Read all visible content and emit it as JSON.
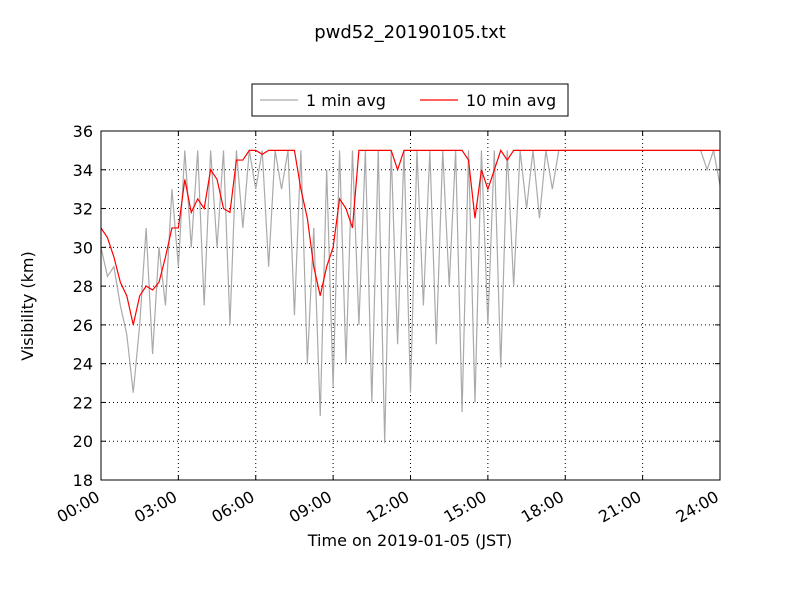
{
  "chart_data": {
    "type": "line",
    "title": "pwd52_20190105.txt",
    "xlabel": "Time on 2019-01-05 (JST)",
    "ylabel": "Visibility (km)",
    "x": [
      0,
      0.25,
      0.5,
      0.75,
      1,
      1.25,
      1.5,
      1.75,
      2,
      2.25,
      2.5,
      2.75,
      3,
      3.25,
      3.5,
      3.75,
      4,
      4.25,
      4.5,
      4.75,
      5,
      5.25,
      5.5,
      5.75,
      6,
      6.25,
      6.5,
      6.75,
      7,
      7.25,
      7.5,
      7.75,
      8,
      8.25,
      8.5,
      8.75,
      9,
      9.25,
      9.5,
      9.75,
      10,
      10.25,
      10.5,
      10.75,
      11,
      11.25,
      11.5,
      11.75,
      12,
      12.25,
      12.5,
      12.75,
      13,
      13.25,
      13.5,
      13.75,
      14,
      14.25,
      14.5,
      14.75,
      15,
      15.25,
      15.5,
      15.75,
      16,
      16.25,
      16.5,
      16.75,
      17,
      17.25,
      17.5,
      17.75,
      18,
      18.25,
      18.5,
      18.75,
      19,
      19.25,
      19.5,
      19.75,
      20,
      20.25,
      20.5,
      20.75,
      21,
      21.25,
      21.5,
      21.75,
      22,
      22.25,
      22.5,
      22.75,
      23,
      23.25,
      23.5,
      23.75,
      24
    ],
    "series": [
      {
        "name": "1 min avg",
        "color": "#aaaaaa",
        "values": [
          30,
          28.5,
          29,
          27,
          25.5,
          22.5,
          26,
          31,
          24.5,
          30,
          27,
          33,
          29,
          35,
          30,
          35,
          27,
          35,
          30,
          35,
          26,
          35,
          31,
          35,
          33,
          35,
          29,
          35,
          33,
          35,
          26.5,
          35,
          24,
          31,
          21.3,
          34,
          22.8,
          35,
          24,
          35,
          26,
          35,
          22,
          35,
          19.9,
          35,
          25,
          35,
          22.5,
          35,
          27,
          35,
          25,
          35,
          28,
          35,
          21.5,
          35,
          22,
          35,
          26,
          35,
          23.8,
          35,
          28,
          35,
          32,
          35,
          31.5,
          35,
          33,
          35,
          35,
          35,
          35,
          35,
          35,
          35,
          35,
          35,
          35,
          35,
          35,
          35,
          35,
          35,
          35,
          35,
          35,
          35,
          35,
          35,
          35,
          35,
          34,
          35,
          33.2
        ]
      },
      {
        "name": "10 min avg",
        "color": "#ff0000",
        "values": [
          31,
          30.5,
          29.5,
          28.2,
          27.5,
          26,
          27.5,
          28,
          27.8,
          28.2,
          29.5,
          31,
          31,
          33.5,
          31.8,
          32.5,
          32,
          34,
          33.5,
          32,
          31.8,
          34.5,
          34.5,
          35,
          35,
          34.8,
          35,
          35,
          35,
          35,
          35,
          33,
          31.5,
          29,
          27.5,
          29,
          30,
          32.5,
          32,
          31,
          35,
          35,
          35,
          35,
          35,
          35,
          34,
          35,
          35,
          35,
          35,
          35,
          35,
          35,
          35,
          35,
          35,
          34.5,
          31.5,
          34,
          33,
          34,
          35,
          34.5,
          35,
          35,
          35,
          35,
          35,
          35,
          35,
          35,
          35,
          35,
          35,
          35,
          35,
          35,
          35,
          35,
          35,
          35,
          35,
          35,
          35,
          35,
          35,
          35,
          35,
          35,
          35,
          35,
          35,
          35,
          35,
          35,
          35
        ]
      }
    ],
    "xlim": [
      0,
      24
    ],
    "xticks": [
      {
        "value": 0,
        "label": "00:00"
      },
      {
        "value": 3,
        "label": "03:00"
      },
      {
        "value": 6,
        "label": "06:00"
      },
      {
        "value": 9,
        "label": "09:00"
      },
      {
        "value": 12,
        "label": "12:00"
      },
      {
        "value": 15,
        "label": "15:00"
      },
      {
        "value": 18,
        "label": "18:00"
      },
      {
        "value": 21,
        "label": "21:00"
      },
      {
        "value": 24,
        "label": "24:00"
      }
    ],
    "ylim": [
      18,
      36
    ],
    "yticks": [
      18,
      20,
      22,
      24,
      26,
      28,
      30,
      32,
      34,
      36
    ],
    "grid": true,
    "legend": "top"
  }
}
